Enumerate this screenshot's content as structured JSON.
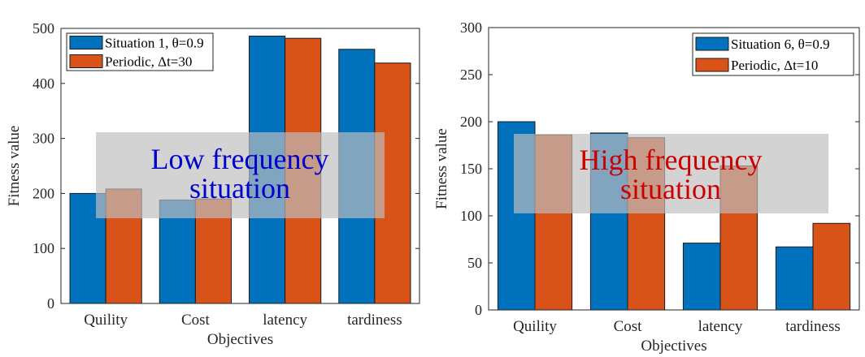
{
  "chart_data": [
    {
      "type": "bar",
      "categories": [
        "Quility",
        "Cost",
        "latency",
        "tardiness"
      ],
      "series": [
        {
          "name": "Situation 1, θ=0.9",
          "values": [
            200,
            188,
            486,
            462
          ],
          "color": "#0072BD"
        },
        {
          "name": "Periodic, Δt=30",
          "values": [
            208,
            190,
            482,
            437
          ],
          "color": "#D95319"
        }
      ],
      "xlabel": "Objectives",
      "ylabel": "Fitness value",
      "ylim": [
        0,
        500
      ],
      "yticks": [
        0,
        100,
        200,
        300,
        400,
        500
      ],
      "legend_position": "top-left",
      "annotation": {
        "lines": [
          "Low frequency",
          "situation"
        ],
        "color": "#0000CC"
      }
    },
    {
      "type": "bar",
      "categories": [
        "Quility",
        "Cost",
        "latency",
        "tardiness"
      ],
      "series": [
        {
          "name": "Situation 6, θ=0.9",
          "values": [
            200,
            188,
            71,
            67
          ],
          "color": "#0072BD"
        },
        {
          "name": "Periodic, Δt=10",
          "values": [
            186,
            183,
            153,
            92
          ],
          "color": "#D95319"
        }
      ],
      "xlabel": "Objectives",
      "ylabel": "Fitness value",
      "ylim": [
        0,
        300
      ],
      "yticks": [
        0,
        50,
        100,
        150,
        200,
        250,
        300
      ],
      "legend_position": "top-right",
      "annotation": {
        "lines": [
          "High frequency",
          "situation"
        ],
        "color": "#CC0000"
      }
    }
  ]
}
